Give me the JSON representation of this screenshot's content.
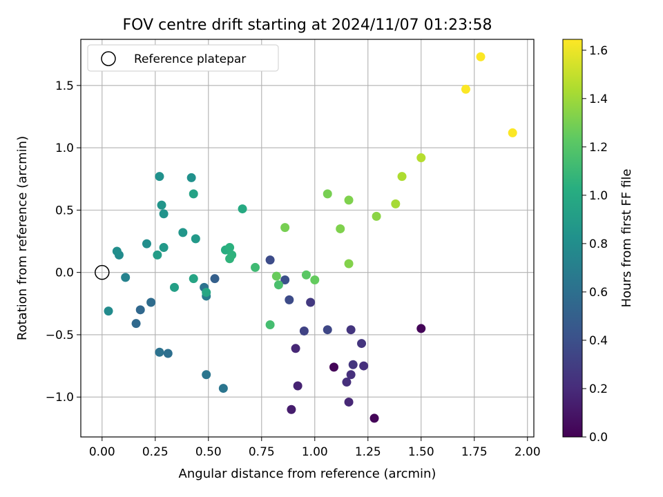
{
  "chart_data": {
    "type": "scatter",
    "title": "FOV centre drift starting at 2024/11/07 01:23:58",
    "xlabel": "Angular distance from reference (arcmin)",
    "ylabel": "Rotation from reference (arcmin)",
    "xlim": [
      -0.1,
      2.03
    ],
    "ylim": [
      -1.32,
      1.87
    ],
    "x_ticks": [
      "0.00",
      "0.25",
      "0.50",
      "0.75",
      "1.00",
      "1.25",
      "1.50",
      "1.75",
      "2.00"
    ],
    "y_ticks": [
      "−1.0",
      "−0.5",
      "0.0",
      "0.5",
      "1.0",
      "1.5"
    ],
    "grid": true,
    "legend": {
      "position": "upper-left",
      "entries": [
        "Reference platepar"
      ]
    },
    "reference_point": {
      "x": 0.0,
      "y": 0.0
    },
    "colorbar": {
      "label": "Hours from first FF file",
      "range": [
        0.0,
        1.645
      ],
      "ticks": [
        "0.0",
        "0.2",
        "0.4",
        "0.6",
        "0.8",
        "1.0",
        "1.2",
        "1.4",
        "1.6"
      ],
      "colormap": "viridis"
    },
    "points": [
      {
        "x": 1.28,
        "y": -1.17,
        "c": 0.02
      },
      {
        "x": 1.09,
        "y": -0.76,
        "c": 0.02
      },
      {
        "x": 1.5,
        "y": -0.45,
        "c": 0.02
      },
      {
        "x": 0.89,
        "y": -1.1,
        "c": 0.13
      },
      {
        "x": 0.92,
        "y": -0.91,
        "c": 0.16
      },
      {
        "x": 1.16,
        "y": -1.04,
        "c": 0.18
      },
      {
        "x": 0.91,
        "y": -0.61,
        "c": 0.18
      },
      {
        "x": 1.15,
        "y": -0.88,
        "c": 0.22
      },
      {
        "x": 1.17,
        "y": -0.82,
        "c": 0.22
      },
      {
        "x": 1.23,
        "y": -0.75,
        "c": 0.22
      },
      {
        "x": 1.18,
        "y": -0.74,
        "c": 0.25
      },
      {
        "x": 1.22,
        "y": -0.57,
        "c": 0.25
      },
      {
        "x": 1.17,
        "y": -0.46,
        "c": 0.25
      },
      {
        "x": 0.98,
        "y": -0.24,
        "c": 0.27
      },
      {
        "x": 0.95,
        "y": -0.47,
        "c": 0.32
      },
      {
        "x": 1.06,
        "y": -0.46,
        "c": 0.35
      },
      {
        "x": 0.88,
        "y": -0.22,
        "c": 0.37
      },
      {
        "x": 0.79,
        "y": 0.1,
        "c": 0.38
      },
      {
        "x": 0.86,
        "y": -0.06,
        "c": 0.4
      },
      {
        "x": 0.53,
        "y": -0.05,
        "c": 0.5
      },
      {
        "x": 0.18,
        "y": -0.3,
        "c": 0.55
      },
      {
        "x": 0.16,
        "y": -0.41,
        "c": 0.56
      },
      {
        "x": 0.23,
        "y": -0.24,
        "c": 0.58
      },
      {
        "x": 0.31,
        "y": -0.65,
        "c": 0.6
      },
      {
        "x": 0.27,
        "y": -0.64,
        "c": 0.62
      },
      {
        "x": 0.48,
        "y": -0.12,
        "c": 0.62
      },
      {
        "x": 0.49,
        "y": -0.82,
        "c": 0.64
      },
      {
        "x": 0.57,
        "y": -0.93,
        "c": 0.64
      },
      {
        "x": 0.49,
        "y": -0.19,
        "c": 0.68
      },
      {
        "x": 0.11,
        "y": -0.04,
        "c": 0.72
      },
      {
        "x": 0.03,
        "y": -0.31,
        "c": 0.78
      },
      {
        "x": 0.08,
        "y": 0.14,
        "c": 0.78
      },
      {
        "x": 0.07,
        "y": 0.17,
        "c": 0.8
      },
      {
        "x": 0.21,
        "y": 0.23,
        "c": 0.8
      },
      {
        "x": 0.27,
        "y": 0.77,
        "c": 0.82
      },
      {
        "x": 0.42,
        "y": 0.76,
        "c": 0.82
      },
      {
        "x": 0.29,
        "y": 0.47,
        "c": 0.84
      },
      {
        "x": 0.28,
        "y": 0.54,
        "c": 0.85
      },
      {
        "x": 0.38,
        "y": 0.32,
        "c": 0.86
      },
      {
        "x": 0.29,
        "y": 0.2,
        "c": 0.88
      },
      {
        "x": 0.44,
        "y": 0.27,
        "c": 0.88
      },
      {
        "x": 0.26,
        "y": 0.14,
        "c": 0.9
      },
      {
        "x": 0.34,
        "y": -0.12,
        "c": 0.92
      },
      {
        "x": 0.43,
        "y": 0.63,
        "c": 0.94
      },
      {
        "x": 0.43,
        "y": -0.05,
        "c": 0.96
      },
      {
        "x": 0.49,
        "y": -0.16,
        "c": 0.97
      },
      {
        "x": 0.66,
        "y": 0.51,
        "c": 0.99
      },
      {
        "x": 0.58,
        "y": 0.18,
        "c": 1.02
      },
      {
        "x": 0.6,
        "y": 0.2,
        "c": 1.04
      },
      {
        "x": 0.61,
        "y": 0.14,
        "c": 1.05
      },
      {
        "x": 0.6,
        "y": 0.11,
        "c": 1.06
      },
      {
        "x": 0.72,
        "y": 0.04,
        "c": 1.12
      },
      {
        "x": 0.79,
        "y": -0.42,
        "c": 1.14
      },
      {
        "x": 0.83,
        "y": -0.1,
        "c": 1.16
      },
      {
        "x": 0.96,
        "y": -0.02,
        "c": 1.22
      },
      {
        "x": 1.0,
        "y": -0.06,
        "c": 1.25
      },
      {
        "x": 0.82,
        "y": -0.03,
        "c": 1.26
      },
      {
        "x": 0.86,
        "y": 0.36,
        "c": 1.3
      },
      {
        "x": 1.06,
        "y": 0.63,
        "c": 1.3
      },
      {
        "x": 1.12,
        "y": 0.35,
        "c": 1.32
      },
      {
        "x": 1.16,
        "y": 0.58,
        "c": 1.32
      },
      {
        "x": 1.16,
        "y": 0.07,
        "c": 1.33
      },
      {
        "x": 1.29,
        "y": 0.45,
        "c": 1.35
      },
      {
        "x": 1.38,
        "y": 0.55,
        "c": 1.42
      },
      {
        "x": 1.41,
        "y": 0.77,
        "c": 1.44
      },
      {
        "x": 1.5,
        "y": 0.92,
        "c": 1.46
      },
      {
        "x": 1.71,
        "y": 1.47,
        "c": 1.64
      },
      {
        "x": 1.78,
        "y": 1.73,
        "c": 1.64
      },
      {
        "x": 1.93,
        "y": 1.12,
        "c": 1.64
      }
    ]
  }
}
